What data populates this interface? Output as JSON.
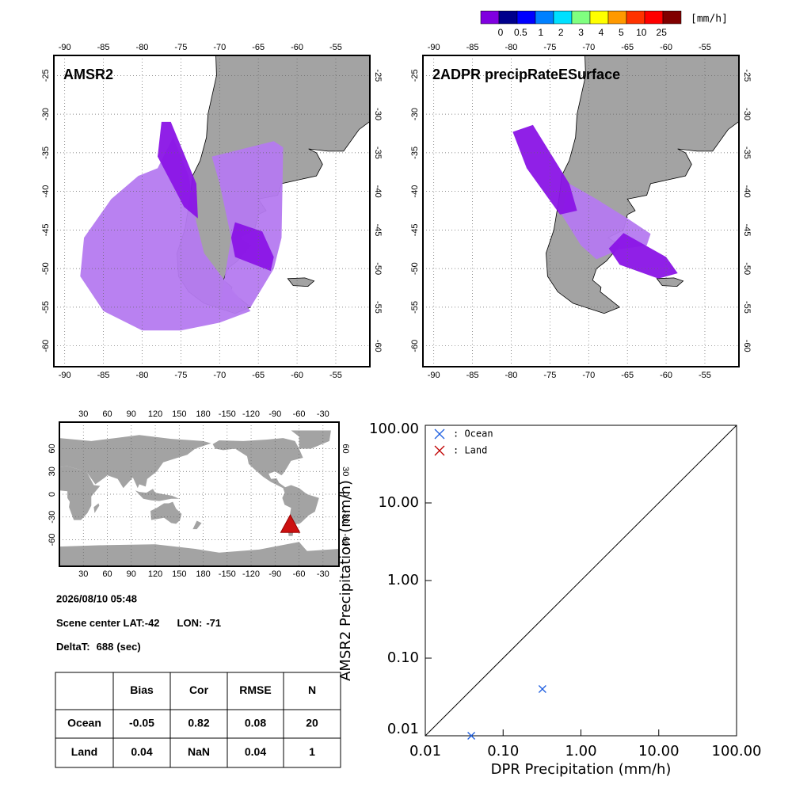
{
  "colorbar": {
    "unit": "[mm/h]",
    "colors": [
      "#8000e0",
      "#00008c",
      "#0000ff",
      "#0080ff",
      "#00e0ff",
      "#80ff80",
      "#ffff00",
      "#ff9900",
      "#ff3300",
      "#ff0000",
      "#800000"
    ],
    "ticks": [
      0,
      0.5,
      1,
      2,
      3,
      4,
      5,
      10,
      25
    ]
  },
  "maps": [
    {
      "title": "AMSR2",
      "xlim": [
        -91.4,
        -50.6
      ],
      "ylim": [
        -62.7,
        -22.4
      ],
      "xticks": [
        -90,
        -85,
        -80,
        -75,
        -70,
        -65,
        -60,
        -55
      ],
      "yticks": [
        -25,
        -30,
        -35,
        -40,
        -45,
        -50,
        -55,
        -60
      ]
    },
    {
      "title": "2ADPR precipRateESurface",
      "xlim": [
        -91.4,
        -50.6
      ],
      "ylim": [
        -62.7,
        -22.4
      ],
      "xticks": [
        -90,
        -85,
        -80,
        -75,
        -70,
        -65,
        -60,
        -55
      ],
      "yticks": [
        -25,
        -30,
        -35,
        -40,
        -45,
        -50,
        -55,
        -60
      ]
    }
  ],
  "world_map": {
    "xlim": [
      0,
      350
    ],
    "ylim": [
      -95,
      95
    ],
    "xticks": [
      30,
      60,
      90,
      120,
      150,
      180,
      -150,
      -120,
      -90,
      -60,
      -30
    ],
    "yticks": [
      60,
      30,
      0,
      -30,
      -60
    ]
  },
  "info": {
    "datetime": "2026/08/10 05:48",
    "scene_label": "Scene center LAT:",
    "lat": -42,
    "lon_label": "LON:",
    "lon": -71,
    "delta_label": "DeltaT:",
    "delta": 688,
    "delta_unit": "(sec)"
  },
  "table": {
    "header": [
      "Bias",
      "Cor",
      "RMSE",
      "N"
    ],
    "rows": [
      [
        "Ocean",
        -0.05,
        0.82,
        0.08,
        20
      ],
      [
        "Land",
        0.04,
        "NaN",
        0.04,
        1
      ]
    ]
  },
  "chart_data": {
    "type": "scatter",
    "x_label": "DPR Precipitation (mm/h)",
    "y_label": "AMSR2 Precipitation (mm/h)",
    "log_x": true,
    "log_y": true,
    "xlim": [
      0.01,
      100
    ],
    "ylim": [
      0.01,
      100
    ],
    "xticks": [
      {
        "value": 0.01,
        "label": "0.01"
      },
      {
        "value": 0.1,
        "label": "0.10"
      },
      {
        "value": 1,
        "label": "1.00"
      },
      {
        "value": 10,
        "label": "10.00"
      },
      {
        "value": 100,
        "label": "100.00"
      }
    ],
    "yticks": [
      {
        "value": 0.01,
        "label": "0.01"
      },
      {
        "value": 0.1,
        "label": "0.10"
      },
      {
        "value": 1,
        "label": "1.00"
      },
      {
        "value": 10,
        "label": "10.00"
      },
      {
        "value": 100,
        "label": "100.00"
      }
    ],
    "series": [
      {
        "name": ": Ocean",
        "color": "#1f5fe0",
        "x": [
          0.039,
          0.32
        ],
        "y": [
          0.01,
          0.04
        ]
      },
      {
        "name": ": Land",
        "color": "#c00000",
        "x": [],
        "y": []
      }
    ]
  }
}
